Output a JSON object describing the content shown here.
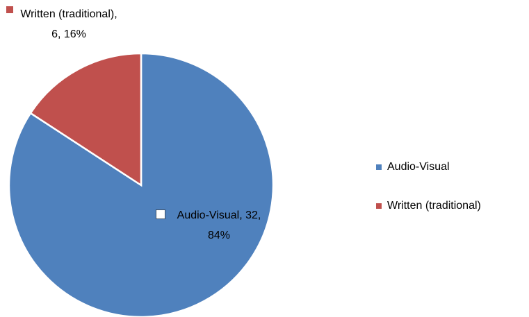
{
  "chart_data": {
    "type": "pie",
    "categories": [
      "Audio-Visual",
      "Written (traditional)"
    ],
    "values": [
      32,
      6
    ],
    "value_labels": [
      "Audio-Visual, 32, 84%",
      "Written (traditional), 6, 16%"
    ],
    "colors": [
      "#4f81bd",
      "#c0504d"
    ],
    "legend": "right"
  }
}
